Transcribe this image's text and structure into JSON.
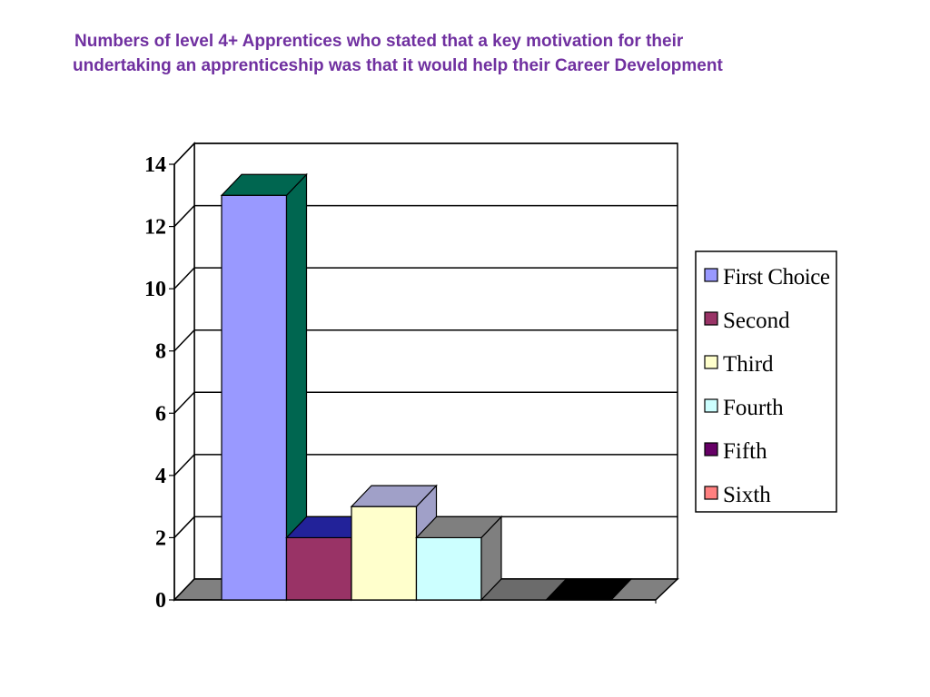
{
  "title": {
    "line1": "Numbers of level 4+ Apprentices who stated that a key motivation for their",
    "line2": " undertaking an apprenticeship was that it would help their Career Development"
  },
  "chart_data": {
    "type": "bar",
    "three_d": true,
    "categories": [
      "First Choice",
      "Second",
      "Third",
      "Fourth",
      "Fifth",
      "Sixth"
    ],
    "values": [
      13,
      2,
      3,
      2,
      0,
      0
    ],
    "series_colors": [
      "#9999FF",
      "#993366",
      "#FFFFCC",
      "#CCFFFF",
      "#660066",
      "#FF8080"
    ],
    "side_colors": [
      "#006650",
      "#222299",
      "#A0A0C8",
      "#7F7F7F",
      "#6B6B6B",
      "#000000"
    ],
    "ylim": [
      0,
      14
    ],
    "yticks": [
      "0",
      "2",
      "4",
      "6",
      "8",
      "10",
      "12",
      "14"
    ],
    "grid": true,
    "legend": {
      "position": "right",
      "entries": [
        "First Choice",
        "Second",
        "Third",
        "Fourth",
        "Fifth",
        "Sixth"
      ]
    }
  }
}
